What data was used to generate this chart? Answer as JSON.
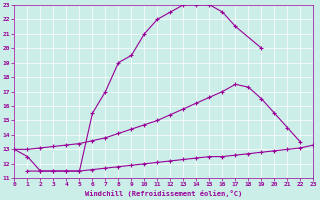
{
  "xlabel": "Windchill (Refroidissement éolien,°C)",
  "bg_color": "#cceee8",
  "line_color": "#990099",
  "grid_color": "#ffffff",
  "xmin": 0,
  "xmax": 23,
  "ymin": 11,
  "ymax": 23,
  "curve1_x": [
    0,
    1,
    2,
    3,
    4,
    5,
    6,
    7,
    8,
    9,
    10,
    11,
    12,
    13,
    14,
    15,
    16,
    17,
    19
  ],
  "curve1_y": [
    13.0,
    12.5,
    11.5,
    11.5,
    11.5,
    11.5,
    15.5,
    17.0,
    19.0,
    19.5,
    21.0,
    22.0,
    22.5,
    23.0,
    23.0,
    23.0,
    22.5,
    21.5,
    20.0
  ],
  "curve2_x": [
    0,
    1,
    2,
    3,
    4,
    5,
    6,
    7,
    8,
    9,
    10,
    11,
    12,
    13,
    14,
    15,
    16,
    17,
    18,
    19,
    20,
    21,
    22
  ],
  "curve2_y": [
    13.0,
    13.0,
    13.1,
    13.2,
    13.3,
    13.4,
    13.6,
    13.8,
    14.1,
    14.4,
    14.7,
    15.0,
    15.4,
    15.8,
    16.2,
    16.6,
    17.0,
    17.5,
    17.3,
    16.5,
    15.5,
    14.5,
    13.5
  ],
  "curve3_x": [
    1,
    2,
    3,
    4,
    5,
    6,
    7,
    8,
    9,
    10,
    11,
    12,
    13,
    14,
    15,
    16,
    17,
    18,
    19,
    20,
    21,
    22,
    23
  ],
  "curve3_y": [
    11.5,
    11.5,
    11.5,
    11.5,
    11.5,
    11.6,
    11.7,
    11.8,
    11.9,
    12.0,
    12.1,
    12.2,
    12.3,
    12.4,
    12.5,
    12.5,
    12.6,
    12.7,
    12.8,
    12.9,
    13.0,
    13.1,
    13.3
  ]
}
